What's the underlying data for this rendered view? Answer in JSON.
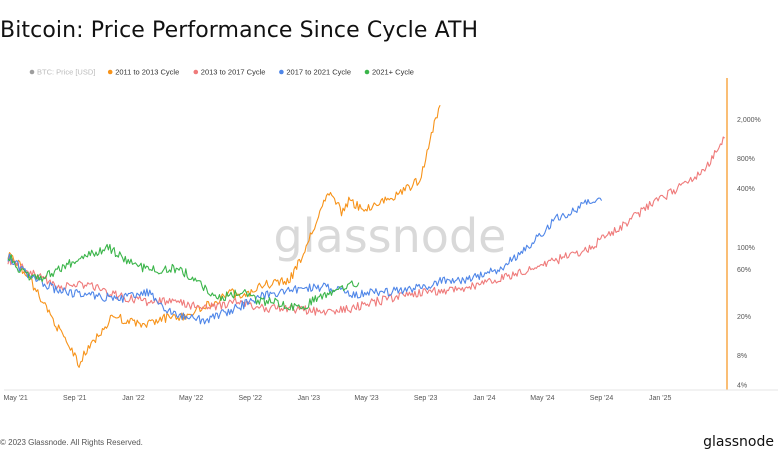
{
  "title": "Bitcoin: Price Performance Since Cycle ATH",
  "footer": {
    "copyright": "© 2023 Glassnode. All Rights Reserved.",
    "logo": "glassnode"
  },
  "watermark": "glassnode",
  "colors": {
    "btc_price": "#9e9e9e",
    "cycle_2011": "#f7931a",
    "cycle_2013": "#ef7b7b",
    "cycle_2017": "#4f86e8",
    "cycle_2021": "#3bb54a",
    "right_axis": "#f7931a"
  },
  "chart_data": {
    "type": "line",
    "title": "Bitcoin: Price Performance Since Cycle ATH",
    "xlabel": "",
    "ylabel": "",
    "x_scale": "date",
    "y_scale": "log",
    "x_range": [
      "2021-04-15",
      "2025-05-20"
    ],
    "ylim": [
      4,
      4000
    ],
    "x_ticks": [
      "May '21",
      "Sep '21",
      "Jan '22",
      "May '22",
      "Sep '22",
      "Jan '23",
      "May '23",
      "Sep '23",
      "Jan '24",
      "May '24",
      "Sep '24",
      "Jan '25"
    ],
    "x_tick_dates": [
      "2021-05-01",
      "2021-09-01",
      "2022-01-01",
      "2022-05-01",
      "2022-09-01",
      "2023-01-01",
      "2023-05-01",
      "2023-09-01",
      "2024-01-01",
      "2024-05-01",
      "2024-09-01",
      "2025-01-01"
    ],
    "y_ticks": [
      {
        "label": "2,000%",
        "value": 2000
      },
      {
        "label": "800%",
        "value": 800
      },
      {
        "label": "400%",
        "value": 400
      },
      {
        "label": "100%",
        "value": 100
      },
      {
        "label": "60%",
        "value": 60
      },
      {
        "label": "20%",
        "value": 20
      },
      {
        "label": "8%",
        "value": 8
      },
      {
        "label": "4%",
        "value": 4
      }
    ],
    "grid": false,
    "legend_position": "top-left",
    "series": [
      {
        "name": "BTC: Price [USD]",
        "key": "btc_price",
        "x": [],
        "values": []
      },
      {
        "name": "2011 to 2013 Cycle",
        "key": "cycle_2011",
        "x": [
          "2021-04-15",
          "2021-05-01",
          "2021-06-01",
          "2021-07-01",
          "2021-08-01",
          "2021-08-20",
          "2021-09-10",
          "2021-09-20",
          "2021-10-20",
          "2021-11-20",
          "2021-12-20",
          "2022-01-20",
          "2022-02-20",
          "2022-03-20",
          "2022-04-20",
          "2022-05-20",
          "2022-06-20",
          "2022-07-20",
          "2022-08-20",
          "2022-09-20",
          "2022-10-20",
          "2022-11-20",
          "2022-12-15",
          "2023-01-10",
          "2023-02-01",
          "2023-02-15",
          "2023-03-01",
          "2023-03-10",
          "2023-03-25",
          "2023-04-20",
          "2023-05-20",
          "2023-06-20",
          "2023-07-20",
          "2023-08-20",
          "2023-09-01",
          "2023-09-10",
          "2023-09-25",
          "2023-10-01"
        ],
        "values": [
          85,
          75,
          45,
          26,
          14,
          10,
          6.5,
          8,
          13,
          20,
          18,
          16,
          18,
          20,
          20,
          24,
          28,
          35,
          32,
          40,
          44,
          45,
          75,
          150,
          300,
          340,
          290,
          220,
          300,
          250,
          270,
          320,
          380,
          500,
          800,
          1300,
          2300,
          2800
        ]
      },
      {
        "name": "2013 to 2017 Cycle",
        "key": "cycle_2013",
        "x": [
          "2021-04-15",
          "2021-06-01",
          "2021-08-01",
          "2021-10-01",
          "2021-12-01",
          "2022-02-01",
          "2022-04-01",
          "2022-06-01",
          "2022-08-01",
          "2022-10-01",
          "2022-12-01",
          "2023-02-01",
          "2023-04-01",
          "2023-06-01",
          "2023-08-01",
          "2023-10-01",
          "2023-12-01",
          "2024-02-01",
          "2024-04-01",
          "2024-06-01",
          "2024-08-01",
          "2024-10-01",
          "2024-12-01",
          "2025-02-01",
          "2025-04-01",
          "2025-05-15"
        ],
        "values": [
          75,
          55,
          40,
          42,
          32,
          28,
          28,
          24,
          28,
          24,
          24,
          22,
          24,
          29,
          34,
          36,
          40,
          48,
          58,
          75,
          95,
          150,
          250,
          380,
          600,
          1300
        ]
      },
      {
        "name": "2017 to 2021 Cycle",
        "key": "cycle_2017",
        "x": [
          "2021-04-15",
          "2021-06-01",
          "2021-08-01",
          "2021-10-01",
          "2021-12-01",
          "2022-02-01",
          "2022-03-15",
          "2022-04-15",
          "2022-06-01",
          "2022-08-01",
          "2022-10-01",
          "2022-12-01",
          "2023-02-01",
          "2023-04-01",
          "2023-06-01",
          "2023-08-01",
          "2023-10-01",
          "2023-12-01",
          "2024-02-01",
          "2024-04-01",
          "2024-06-01",
          "2024-08-01",
          "2024-09-01"
        ],
        "values": [
          80,
          50,
          36,
          33,
          30,
          35,
          22,
          20,
          18,
          24,
          33,
          37,
          40,
          33,
          35,
          37,
          45,
          48,
          60,
          100,
          200,
          280,
          300
        ]
      },
      {
        "name": "2021+ Cycle",
        "key": "cycle_2021",
        "x": [
          "2021-04-15",
          "2021-05-01",
          "2021-06-01",
          "2021-07-01",
          "2021-08-01",
          "2021-09-01",
          "2021-10-15",
          "2021-11-10",
          "2021-12-15",
          "2022-01-20",
          "2022-02-20",
          "2022-03-20",
          "2022-04-20",
          "2022-05-15",
          "2022-06-20",
          "2022-07-20",
          "2022-08-15",
          "2022-09-20",
          "2022-10-20",
          "2022-11-20",
          "2022-12-20",
          "2023-01-20",
          "2023-02-20",
          "2023-03-20",
          "2023-04-15"
        ],
        "values": [
          85,
          65,
          50,
          50,
          62,
          72,
          90,
          100,
          75,
          62,
          58,
          62,
          55,
          45,
          30,
          33,
          35,
          28,
          29,
          25,
          24,
          32,
          35,
          40,
          44
        ]
      }
    ],
    "annotations": [
      "glassnode"
    ]
  }
}
